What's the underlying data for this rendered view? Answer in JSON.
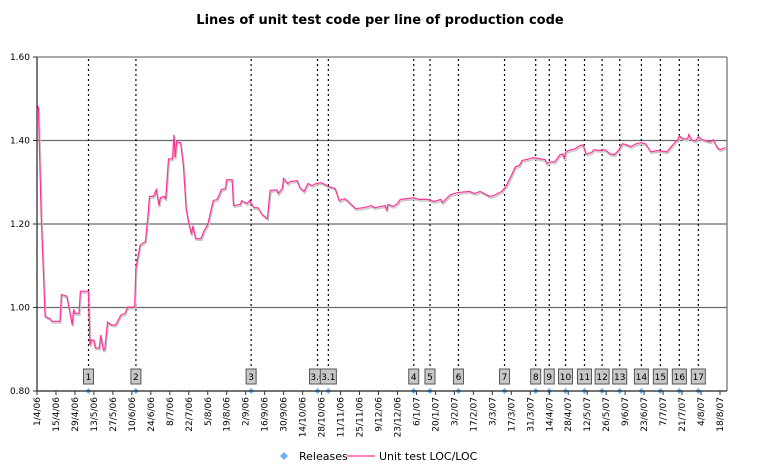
{
  "chart_data": {
    "type": "line",
    "title": "Lines of unit test code per line of production code",
    "xlabel": "",
    "ylabel": "",
    "ylim": [
      0.8,
      1.6
    ],
    "yticks": [
      "0.80",
      "1.00",
      "1.20",
      "1.40",
      "1.60"
    ],
    "xlim": [
      "2006-04-01",
      "2007-08-22"
    ],
    "xticks": [
      "1/4/06",
      "15/4/06",
      "29/4/06",
      "13/5/06",
      "27/5/06",
      "10/6/06",
      "24/6/06",
      "8/7/06",
      "22/7/06",
      "5/8/06",
      "19/8/06",
      "2/9/06",
      "16/9/06",
      "30/9/06",
      "14/10/06",
      "28/10/06",
      "11/11/06",
      "25/11/06",
      "9/12/06",
      "23/12/06",
      "6/1/07",
      "20/1/07",
      "3/2/07",
      "17/2/07",
      "3/3/07",
      "17/3/07",
      "31/3/07",
      "14/4/07",
      "28/4/07",
      "12/5/07",
      "26/5/07",
      "9/6/07",
      "23/6/07",
      "7/7/07",
      "21/7/07",
      "4/8/07",
      "18/8/07"
    ],
    "grid": "horizontal",
    "legend_position": "bottom",
    "colors": {
      "line": "#ff3399",
      "releases": "#66b3ff",
      "release_box": "#c8c8c8"
    },
    "series": [
      {
        "name": "Releases",
        "type": "scatter",
        "points": [
          {
            "x": "2006-05-09",
            "y": 0.8,
            "label": "1"
          },
          {
            "x": "2006-06-13",
            "y": 0.8,
            "label": "2"
          },
          {
            "x": "2006-09-06",
            "y": 0.8,
            "label": "3"
          },
          {
            "x": "2006-10-25",
            "y": 0.8,
            "label": "3.0"
          },
          {
            "x": "2006-11-02",
            "y": 0.8,
            "label": "3.1"
          },
          {
            "x": "2007-01-04",
            "y": 0.8,
            "label": "4"
          },
          {
            "x": "2007-01-16",
            "y": 0.8,
            "label": "5"
          },
          {
            "x": "2007-02-06",
            "y": 0.8,
            "label": "6"
          },
          {
            "x": "2007-03-12",
            "y": 0.8,
            "label": "7"
          },
          {
            "x": "2007-04-04",
            "y": 0.8,
            "label": "8"
          },
          {
            "x": "2007-04-14",
            "y": 0.8,
            "label": "9"
          },
          {
            "x": "2007-04-26",
            "y": 0.8,
            "label": "10"
          },
          {
            "x": "2007-05-10",
            "y": 0.8,
            "label": "11"
          },
          {
            "x": "2007-05-23",
            "y": 0.8,
            "label": "12"
          },
          {
            "x": "2007-06-05",
            "y": 0.8,
            "label": "13"
          },
          {
            "x": "2007-06-21",
            "y": 0.8,
            "label": "14"
          },
          {
            "x": "2007-07-05",
            "y": 0.8,
            "label": "15"
          },
          {
            "x": "2007-07-19",
            "y": 0.8,
            "label": "16"
          },
          {
            "x": "2007-08-02",
            "y": 0.8,
            "label": "17"
          }
        ]
      },
      {
        "name": "Unit test LOC/LOC",
        "type": "line",
        "points": [
          [
            "2006-04-01",
            1.483
          ],
          [
            "2006-04-02",
            1.48
          ],
          [
            "2006-04-04",
            1.225
          ],
          [
            "2006-04-07",
            0.979
          ],
          [
            "2006-04-11",
            0.972
          ],
          [
            "2006-04-12",
            0.967
          ],
          [
            "2006-04-18",
            0.967
          ],
          [
            "2006-04-19",
            1.031
          ],
          [
            "2006-04-23",
            1.027
          ],
          [
            "2006-04-25",
            0.993
          ],
          [
            "2006-04-27",
            0.958
          ],
          [
            "2006-04-28",
            0.996
          ],
          [
            "2006-04-29",
            0.986
          ],
          [
            "2006-05-02",
            0.986
          ],
          [
            "2006-05-03",
            1.039
          ],
          [
            "2006-05-09",
            1.039
          ],
          [
            "2006-05-10",
            0.91
          ],
          [
            "2006-05-11",
            0.922
          ],
          [
            "2006-05-13",
            0.922
          ],
          [
            "2006-05-14",
            0.903
          ],
          [
            "2006-05-17",
            0.903
          ],
          [
            "2006-05-18",
            0.934
          ],
          [
            "2006-05-20",
            0.898
          ],
          [
            "2006-05-21",
            0.9
          ],
          [
            "2006-05-23",
            0.965
          ],
          [
            "2006-05-26",
            0.958
          ],
          [
            "2006-05-29",
            0.958
          ],
          [
            "2006-06-02",
            0.982
          ],
          [
            "2006-06-05",
            0.986
          ],
          [
            "2006-06-07",
            1.001
          ],
          [
            "2006-06-12",
            1.001
          ],
          [
            "2006-06-13",
            1.094
          ],
          [
            "2006-06-16",
            1.149
          ],
          [
            "2006-06-20",
            1.158
          ],
          [
            "2006-06-22",
            1.223
          ],
          [
            "2006-06-23",
            1.266
          ],
          [
            "2006-06-26",
            1.266
          ],
          [
            "2006-06-28",
            1.282
          ],
          [
            "2006-06-30",
            1.244
          ],
          [
            "2006-07-01",
            1.263
          ],
          [
            "2006-07-04",
            1.266
          ],
          [
            "2006-07-05",
            1.259
          ],
          [
            "2006-07-07",
            1.356
          ],
          [
            "2006-07-10",
            1.356
          ],
          [
            "2006-07-11",
            1.414
          ],
          [
            "2006-07-12",
            1.359
          ],
          [
            "2006-07-13",
            1.397
          ],
          [
            "2006-07-16",
            1.395
          ],
          [
            "2006-07-18",
            1.34
          ],
          [
            "2006-07-20",
            1.237
          ],
          [
            "2006-07-22",
            1.201
          ],
          [
            "2006-07-24",
            1.175
          ],
          [
            "2006-07-25",
            1.196
          ],
          [
            "2006-07-27",
            1.165
          ],
          [
            "2006-07-31",
            1.165
          ],
          [
            "2006-08-02",
            1.182
          ],
          [
            "2006-08-05",
            1.199
          ],
          [
            "2006-08-09",
            1.256
          ],
          [
            "2006-08-12",
            1.259
          ],
          [
            "2006-08-15",
            1.282
          ],
          [
            "2006-08-18",
            1.285
          ],
          [
            "2006-08-19",
            1.306
          ],
          [
            "2006-08-23",
            1.306
          ],
          [
            "2006-08-24",
            1.244
          ],
          [
            "2006-08-29",
            1.247
          ],
          [
            "2006-08-30",
            1.256
          ],
          [
            "2006-09-03",
            1.249
          ],
          [
            "2006-09-05",
            1.256
          ],
          [
            "2006-09-08",
            1.239
          ],
          [
            "2006-09-11",
            1.239
          ],
          [
            "2006-09-14",
            1.223
          ],
          [
            "2006-09-18",
            1.213
          ],
          [
            "2006-09-20",
            1.28
          ],
          [
            "2006-09-25",
            1.282
          ],
          [
            "2006-09-26",
            1.273
          ],
          [
            "2006-09-29",
            1.285
          ],
          [
            "2006-09-30",
            1.309
          ],
          [
            "2006-10-03",
            1.297
          ],
          [
            "2006-10-05",
            1.302
          ],
          [
            "2006-10-10",
            1.304
          ],
          [
            "2006-10-12",
            1.287
          ],
          [
            "2006-10-15",
            1.278
          ],
          [
            "2006-10-18",
            1.297
          ],
          [
            "2006-10-21",
            1.292
          ],
          [
            "2006-10-24",
            1.297
          ],
          [
            "2006-10-28",
            1.299
          ],
          [
            "2006-11-02",
            1.29
          ],
          [
            "2006-11-07",
            1.285
          ],
          [
            "2006-11-10",
            1.256
          ],
          [
            "2006-11-14",
            1.261
          ],
          [
            "2006-11-16",
            1.256
          ],
          [
            "2006-11-22",
            1.237
          ],
          [
            "2006-11-28",
            1.239
          ],
          [
            "2006-12-04",
            1.244
          ],
          [
            "2006-12-06",
            1.239
          ],
          [
            "2006-12-14",
            1.244
          ],
          [
            "2006-12-15",
            1.232
          ],
          [
            "2006-12-16",
            1.247
          ],
          [
            "2006-12-20",
            1.242
          ],
          [
            "2006-12-23",
            1.249
          ],
          [
            "2006-12-25",
            1.259
          ],
          [
            "2006-12-31",
            1.261
          ],
          [
            "2007-01-04",
            1.263
          ],
          [
            "2007-01-08",
            1.259
          ],
          [
            "2007-01-14",
            1.259
          ],
          [
            "2007-01-19",
            1.254
          ],
          [
            "2007-01-24",
            1.259
          ],
          [
            "2007-01-25",
            1.251
          ],
          [
            "2007-01-31",
            1.27
          ],
          [
            "2007-02-05",
            1.275
          ],
          [
            "2007-02-14",
            1.278
          ],
          [
            "2007-02-18",
            1.273
          ],
          [
            "2007-02-22",
            1.278
          ],
          [
            "2007-03-01",
            1.266
          ],
          [
            "2007-03-04",
            1.268
          ],
          [
            "2007-03-10",
            1.278
          ],
          [
            "2007-03-13",
            1.29
          ],
          [
            "2007-03-17",
            1.316
          ],
          [
            "2007-03-20",
            1.337
          ],
          [
            "2007-03-23",
            1.34
          ],
          [
            "2007-03-25",
            1.352
          ],
          [
            "2007-03-30",
            1.356
          ],
          [
            "2007-04-02",
            1.359
          ],
          [
            "2007-04-11",
            1.354
          ],
          [
            "2007-04-12",
            1.345
          ],
          [
            "2007-04-15",
            1.349
          ],
          [
            "2007-04-18",
            1.349
          ],
          [
            "2007-04-22",
            1.366
          ],
          [
            "2007-04-24",
            1.368
          ],
          [
            "2007-04-25",
            1.356
          ],
          [
            "2007-04-26",
            1.371
          ],
          [
            "2007-04-28",
            1.376
          ],
          [
            "2007-05-03",
            1.38
          ],
          [
            "2007-05-06",
            1.387
          ],
          [
            "2007-05-09",
            1.39
          ],
          [
            "2007-05-11",
            1.368
          ],
          [
            "2007-05-15",
            1.371
          ],
          [
            "2007-05-17",
            1.378
          ],
          [
            "2007-05-21",
            1.376
          ],
          [
            "2007-05-25",
            1.378
          ],
          [
            "2007-05-29",
            1.368
          ],
          [
            "2007-06-01",
            1.366
          ],
          [
            "2007-06-04",
            1.376
          ],
          [
            "2007-06-07",
            1.392
          ],
          [
            "2007-06-10",
            1.39
          ],
          [
            "2007-06-13",
            1.385
          ],
          [
            "2007-06-17",
            1.392
          ],
          [
            "2007-06-21",
            1.395
          ],
          [
            "2007-06-24",
            1.392
          ],
          [
            "2007-06-28",
            1.373
          ],
          [
            "2007-07-03",
            1.376
          ],
          [
            "2007-07-10",
            1.373
          ],
          [
            "2007-07-13",
            1.385
          ],
          [
            "2007-07-16",
            1.397
          ],
          [
            "2007-07-18",
            1.402
          ],
          [
            "2007-07-19",
            1.411
          ],
          [
            "2007-07-22",
            1.404
          ],
          [
            "2007-07-25",
            1.404
          ],
          [
            "2007-07-26",
            1.414
          ],
          [
            "2007-07-28",
            1.402
          ],
          [
            "2007-07-31",
            1.399
          ],
          [
            "2007-08-02",
            1.409
          ],
          [
            "2007-08-05",
            1.402
          ],
          [
            "2007-08-08",
            1.399
          ],
          [
            "2007-08-11",
            1.397
          ],
          [
            "2007-08-13",
            1.402
          ],
          [
            "2007-08-16",
            1.383
          ],
          [
            "2007-08-18",
            1.378
          ],
          [
            "2007-08-22",
            1.383
          ]
        ]
      }
    ]
  }
}
